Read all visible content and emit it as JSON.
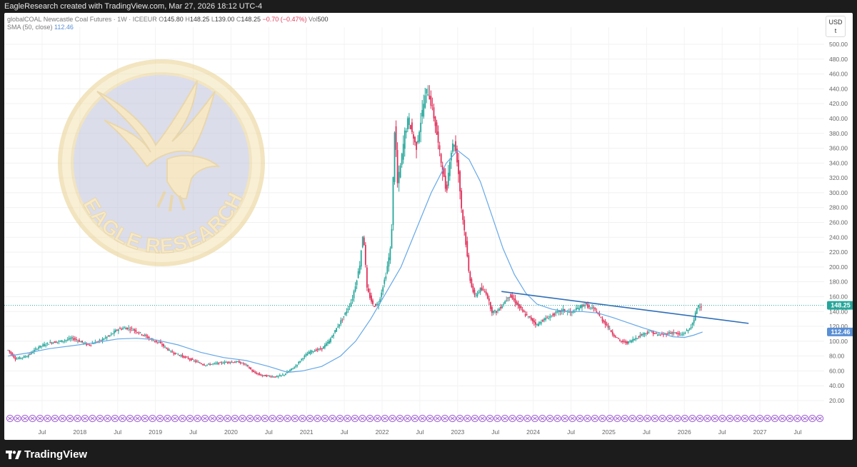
{
  "header": {
    "attribution": "EagleResearch created with TradingView.com, Mar 27, 2026 18:12 UTC-4"
  },
  "legend": {
    "symbol": "globalCOAL Newcastle Coal Futures · 1W · ICEEUR",
    "open_label": "O",
    "open": "145.80",
    "high_label": "H",
    "high": "148.25",
    "low_label": "L",
    "low": "139.00",
    "close_label": "C",
    "close": "148.25",
    "change": "−0.70 (−0.47%)",
    "vol_label": "Vol",
    "vol": "500",
    "sma_label": "SMA (50, close)",
    "sma_value": "112.46"
  },
  "currency": {
    "code": "USD",
    "unit": "t"
  },
  "watermark": {
    "text": "EAGLE RESEARCH"
  },
  "footer": {
    "brand": "TradingView"
  },
  "colors": {
    "up": "#26a69a",
    "down": "#e0305a",
    "sma": "#64a8e8",
    "trendline": "#2f6fb8",
    "price_label": "#26a69a",
    "sma_label": "#5a8fd4",
    "event_icons": "#9b59d0"
  },
  "chart_data": {
    "type": "candlestick",
    "timeframe": "1W",
    "y_axis": {
      "min": 20,
      "max": 500,
      "step": 20,
      "ticks": [
        "500.00",
        "480.00",
        "460.00",
        "440.00",
        "420.00",
        "400.00",
        "380.00",
        "360.00",
        "340.00",
        "320.00",
        "300.00",
        "280.00",
        "260.00",
        "240.00",
        "220.00",
        "200.00",
        "180.00",
        "160.00",
        "140.00",
        "120.00",
        "100.00",
        "80.00",
        "60.00",
        "40.00",
        "20.00"
      ]
    },
    "x_axis": {
      "ticks": [
        {
          "label": "Jul",
          "t": 2017.5
        },
        {
          "label": "2018",
          "t": 2018.0
        },
        {
          "label": "Jul",
          "t": 2018.5
        },
        {
          "label": "2019",
          "t": 2019.0
        },
        {
          "label": "Jul",
          "t": 2019.5
        },
        {
          "label": "2020",
          "t": 2020.0
        },
        {
          "label": "Jul",
          "t": 2020.5
        },
        {
          "label": "2021",
          "t": 2021.0
        },
        {
          "label": "Jul",
          "t": 2021.5
        },
        {
          "label": "2022",
          "t": 2022.0
        },
        {
          "label": "Jul",
          "t": 2022.5
        },
        {
          "label": "2023",
          "t": 2023.0
        },
        {
          "label": "Jul",
          "t": 2023.5
        },
        {
          "label": "2024",
          "t": 2024.0
        },
        {
          "label": "Jul",
          "t": 2024.5
        },
        {
          "label": "2025",
          "t": 2025.0
        },
        {
          "label": "Jul",
          "t": 2025.5
        },
        {
          "label": "2026",
          "t": 2026.0
        },
        {
          "label": "Jul",
          "t": 2026.5
        },
        {
          "label": "2027",
          "t": 2027.0
        },
        {
          "label": "Jul",
          "t": 2027.5
        }
      ]
    },
    "last_price": 148.25,
    "sma_last": 112.46,
    "price_path": [
      [
        2017.05,
        88
      ],
      [
        2017.15,
        76
      ],
      [
        2017.3,
        80
      ],
      [
        2017.45,
        92
      ],
      [
        2017.6,
        98
      ],
      [
        2017.75,
        100
      ],
      [
        2017.9,
        104
      ],
      [
        2018.0,
        100
      ],
      [
        2018.1,
        95
      ],
      [
        2018.25,
        100
      ],
      [
        2018.4,
        108
      ],
      [
        2018.5,
        116
      ],
      [
        2018.6,
        118
      ],
      [
        2018.7,
        116
      ],
      [
        2018.85,
        108
      ],
      [
        2018.95,
        102
      ],
      [
        2019.05,
        98
      ],
      [
        2019.2,
        86
      ],
      [
        2019.35,
        80
      ],
      [
        2019.5,
        74
      ],
      [
        2019.65,
        68
      ],
      [
        2019.8,
        70
      ],
      [
        2019.95,
        72
      ],
      [
        2020.1,
        72
      ],
      [
        2020.2,
        68
      ],
      [
        2020.3,
        58
      ],
      [
        2020.4,
        54
      ],
      [
        2020.5,
        53
      ],
      [
        2020.6,
        52
      ],
      [
        2020.7,
        55
      ],
      [
        2020.85,
        66
      ],
      [
        2020.95,
        78
      ],
      [
        2021.05,
        86
      ],
      [
        2021.2,
        90
      ],
      [
        2021.3,
        100
      ],
      [
        2021.4,
        118
      ],
      [
        2021.5,
        135
      ],
      [
        2021.6,
        155
      ],
      [
        2021.7,
        200
      ],
      [
        2021.75,
        250
      ],
      [
        2021.8,
        170
      ],
      [
        2021.88,
        148
      ],
      [
        2021.95,
        150
      ],
      [
        2022.05,
        190
      ],
      [
        2022.12,
        230
      ],
      [
        2022.17,
        400
      ],
      [
        2022.2,
        310
      ],
      [
        2022.25,
        340
      ],
      [
        2022.3,
        380
      ],
      [
        2022.35,
        400
      ],
      [
        2022.4,
        380
      ],
      [
        2022.45,
        360
      ],
      [
        2022.5,
        390
      ],
      [
        2022.55,
        420
      ],
      [
        2022.6,
        440
      ],
      [
        2022.65,
        420
      ],
      [
        2022.7,
        395
      ],
      [
        2022.75,
        360
      ],
      [
        2022.8,
        330
      ],
      [
        2022.85,
        300
      ],
      [
        2022.9,
        350
      ],
      [
        2022.95,
        370
      ],
      [
        2023.0,
        340
      ],
      [
        2023.05,
        280
      ],
      [
        2023.1,
        240
      ],
      [
        2023.15,
        190
      ],
      [
        2023.22,
        160
      ],
      [
        2023.3,
        170
      ],
      [
        2023.38,
        165
      ],
      [
        2023.45,
        140
      ],
      [
        2023.52,
        140
      ],
      [
        2023.6,
        150
      ],
      [
        2023.68,
        162
      ],
      [
        2023.75,
        155
      ],
      [
        2023.82,
        145
      ],
      [
        2023.9,
        135
      ],
      [
        2023.97,
        130
      ],
      [
        2024.05,
        122
      ],
      [
        2024.12,
        128
      ],
      [
        2024.2,
        132
      ],
      [
        2024.3,
        138
      ],
      [
        2024.4,
        142
      ],
      [
        2024.5,
        138
      ],
      [
        2024.6,
        145
      ],
      [
        2024.68,
        150
      ],
      [
        2024.75,
        145
      ],
      [
        2024.82,
        142
      ],
      [
        2024.9,
        130
      ],
      [
        2024.97,
        122
      ],
      [
        2025.05,
        110
      ],
      [
        2025.15,
        100
      ],
      [
        2025.25,
        98
      ],
      [
        2025.35,
        104
      ],
      [
        2025.45,
        110
      ],
      [
        2025.55,
        113
      ],
      [
        2025.65,
        108
      ],
      [
        2025.75,
        110
      ],
      [
        2025.85,
        112
      ],
      [
        2025.95,
        108
      ],
      [
        2026.05,
        115
      ],
      [
        2026.12,
        125
      ],
      [
        2026.17,
        148
      ],
      [
        2026.24,
        148.25
      ]
    ],
    "sma_path": [
      [
        2017.05,
        80
      ],
      [
        2017.3,
        84
      ],
      [
        2017.6,
        90
      ],
      [
        2017.9,
        94
      ],
      [
        2018.2,
        98
      ],
      [
        2018.5,
        103
      ],
      [
        2018.75,
        104
      ],
      [
        2019.0,
        102
      ],
      [
        2019.3,
        95
      ],
      [
        2019.6,
        85
      ],
      [
        2019.9,
        78
      ],
      [
        2020.2,
        74
      ],
      [
        2020.5,
        66
      ],
      [
        2020.75,
        58
      ],
      [
        2020.95,
        60
      ],
      [
        2021.2,
        66
      ],
      [
        2021.45,
        80
      ],
      [
        2021.65,
        100
      ],
      [
        2021.85,
        130
      ],
      [
        2022.05,
        165
      ],
      [
        2022.25,
        200
      ],
      [
        2022.45,
        250
      ],
      [
        2022.65,
        300
      ],
      [
        2022.85,
        340
      ],
      [
        2023.0,
        357
      ],
      [
        2023.15,
        345
      ],
      [
        2023.3,
        315
      ],
      [
        2023.45,
        270
      ],
      [
        2023.6,
        225
      ],
      [
        2023.75,
        190
      ],
      [
        2023.9,
        165
      ],
      [
        2024.05,
        150
      ],
      [
        2024.25,
        143
      ],
      [
        2024.45,
        140
      ],
      [
        2024.65,
        140
      ],
      [
        2024.85,
        138
      ],
      [
        2025.05,
        132
      ],
      [
        2025.25,
        125
      ],
      [
        2025.45,
        118
      ],
      [
        2025.65,
        112
      ],
      [
        2025.85,
        106
      ],
      [
        2026.0,
        105
      ],
      [
        2026.12,
        108
      ],
      [
        2026.24,
        112.46
      ]
    ],
    "trendline": [
      [
        2023.58,
        167
      ],
      [
        2026.85,
        124
      ]
    ]
  }
}
